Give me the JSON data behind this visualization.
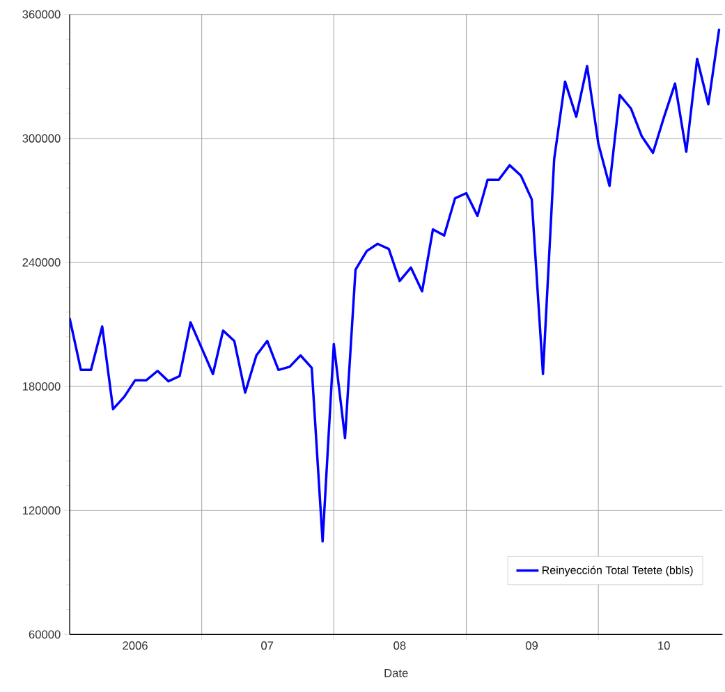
{
  "chart_data": {
    "type": "line",
    "xlabel": "Date",
    "x": [
      "2006-01",
      "2006-02",
      "2006-03",
      "2006-04",
      "2006-05",
      "2006-06",
      "2006-07",
      "2006-08",
      "2006-09",
      "2006-10",
      "2006-11",
      "2006-12",
      "2007-01",
      "2007-02",
      "2007-03",
      "2007-04",
      "2007-05",
      "2007-06",
      "2007-07",
      "2007-08",
      "2007-09",
      "2007-10",
      "2007-11",
      "2007-12",
      "2008-01",
      "2008-02",
      "2008-03",
      "2008-04",
      "2008-05",
      "2008-06",
      "2008-07",
      "2008-08",
      "2008-09",
      "2008-10",
      "2008-11",
      "2008-12",
      "2009-01",
      "2009-02",
      "2009-03",
      "2009-04",
      "2009-05",
      "2009-06",
      "2009-07",
      "2009-08",
      "2009-09",
      "2009-10",
      "2009-11",
      "2009-12",
      "2010-01",
      "2010-02",
      "2010-03",
      "2010-04",
      "2010-05",
      "2010-06",
      "2010-07",
      "2010-08",
      "2010-09",
      "2010-10",
      "2010-11",
      "2010-12"
    ],
    "series": [
      {
        "name": "Reinyección Total Tetete (bbls)",
        "color": "#0000ff",
        "values": [
          213000,
          188000,
          188000,
          209000,
          169000,
          175000,
          183000,
          183000,
          187500,
          182500,
          185000,
          211000,
          198500,
          186000,
          207000,
          202000,
          177000,
          195000,
          202000,
          188000,
          189500,
          195000,
          189000,
          105000,
          200500,
          155000,
          236500,
          245500,
          249000,
          246500,
          231000,
          237500,
          226000,
          256000,
          253000,
          271000,
          273500,
          262500,
          280000,
          280000,
          287000,
          282000,
          270500,
          186000,
          290000,
          327500,
          310500,
          335000,
          297500,
          277000,
          321000,
          314500,
          301000,
          293000,
          310000,
          326500,
          293500,
          338500,
          316500,
          353000
        ]
      }
    ],
    "xlim": [
      "2006-01-01",
      "2010-12-10"
    ],
    "xticks": [
      {
        "value": "2006-07",
        "label": "2006"
      },
      {
        "value": "2007-01",
        "label": null
      },
      {
        "value": "2007-07",
        "label": "07"
      },
      {
        "value": "2008-01",
        "label": null
      },
      {
        "value": "2008-07",
        "label": "08"
      },
      {
        "value": "2009-01",
        "label": null
      },
      {
        "value": "2009-07",
        "label": "09"
      },
      {
        "value": "2010-01",
        "label": null
      },
      {
        "value": "2010-07",
        "label": "10"
      }
    ],
    "ylim": [
      60000,
      360000
    ],
    "yticks": [
      60000,
      120000,
      180000,
      240000,
      300000,
      360000
    ],
    "grid": true,
    "legend": "bottom right",
    "marker": "none",
    "line_style": "solid"
  }
}
